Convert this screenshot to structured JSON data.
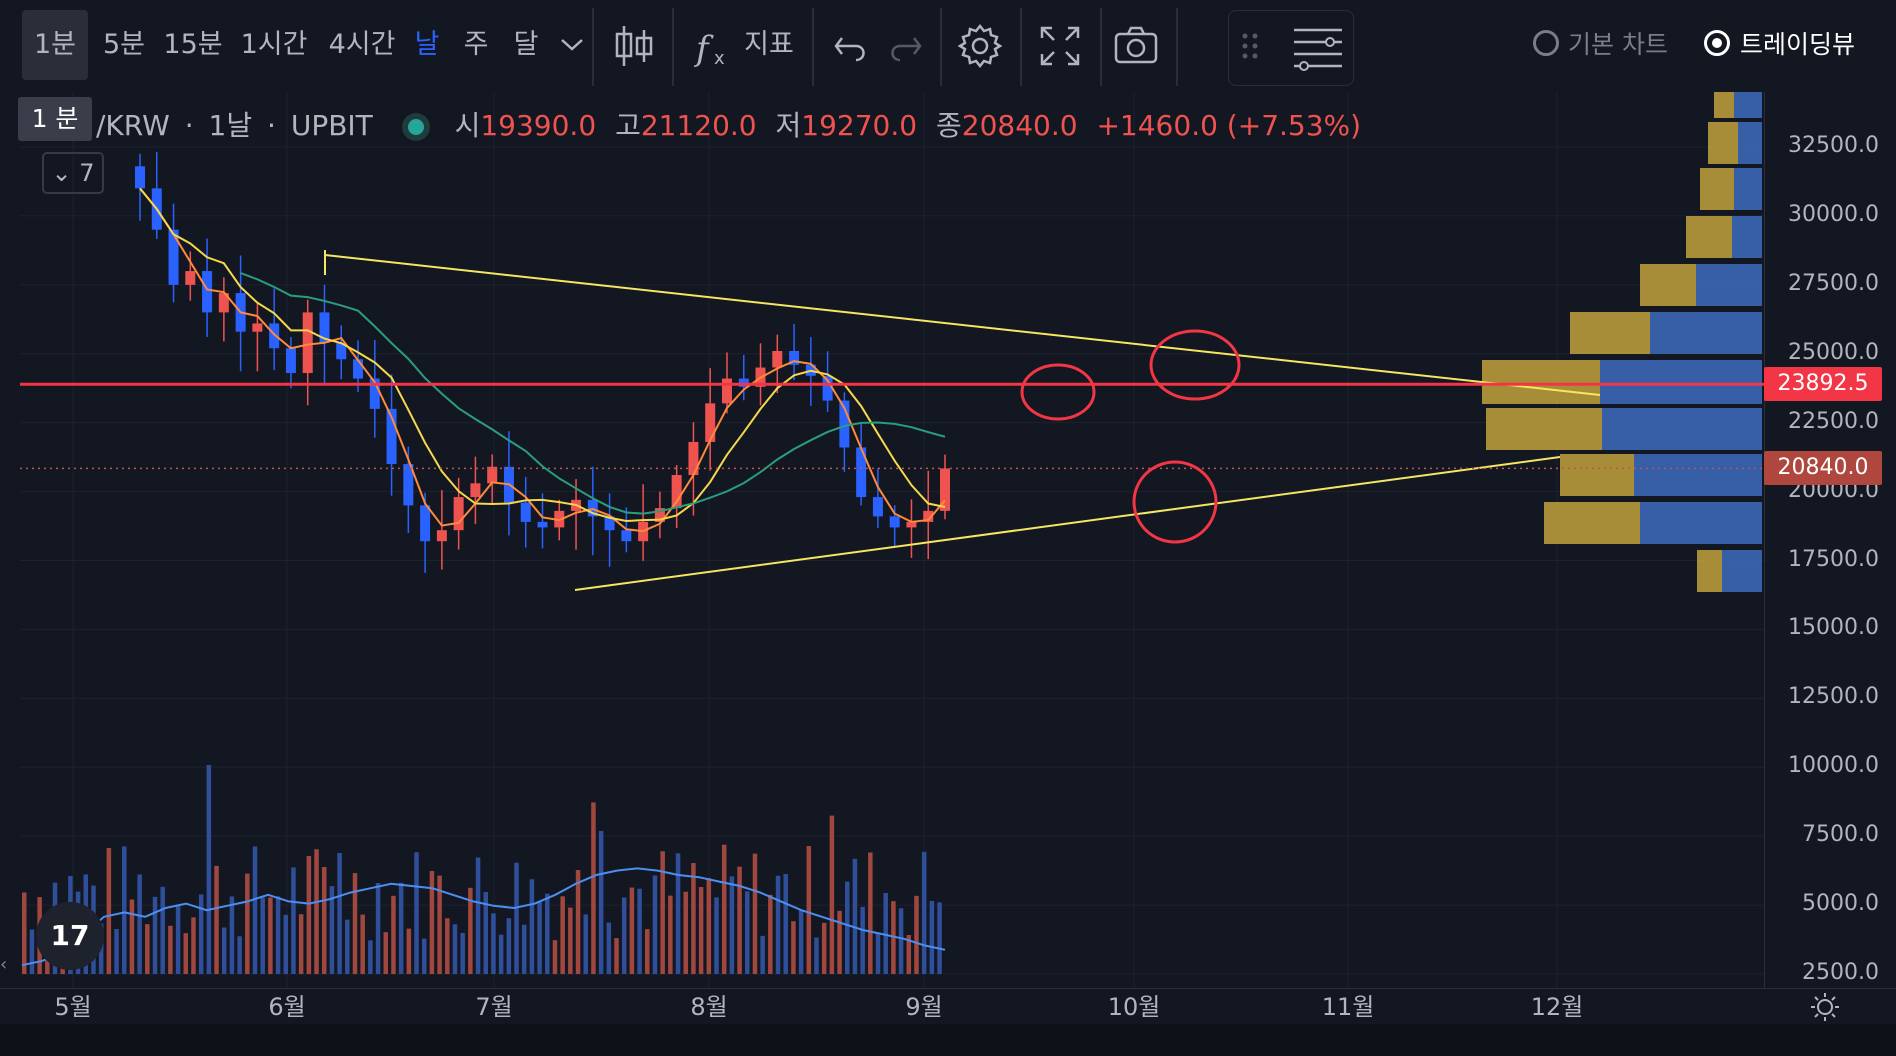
{
  "toolbar": {
    "intervals": [
      {
        "label": "1분",
        "active": false,
        "hovered": true
      },
      {
        "label": "5분",
        "active": false
      },
      {
        "label": "15분",
        "active": false
      },
      {
        "label": "1시간",
        "active": false
      },
      {
        "label": "4시간",
        "active": false
      },
      {
        "label": "날",
        "active": true
      },
      {
        "label": "주",
        "active": false
      },
      {
        "label": "달",
        "active": false
      }
    ],
    "indicators_label": "지표",
    "chart_types": {
      "basic": "기본 차트",
      "tradingview": "트레이딩뷰",
      "selected": "tradingview"
    }
  },
  "tooltip": {
    "text": "1 분"
  },
  "legend": {
    "symbol": "/KRW",
    "interval": "1날",
    "exchange": "UPBIT",
    "open_label": "시",
    "open": "19390.0",
    "high_label": "고",
    "high": "21120.0",
    "low_label": "저",
    "low": "19270.0",
    "close_label": "종",
    "close": "20840.0",
    "change": "+1460.0 (+7.53%)",
    "collapse_count": "7"
  },
  "price_tags": {
    "level": "23892.5",
    "last": "20840.0"
  },
  "colors": {
    "background": "#131722",
    "up": "#ef5350",
    "down": "#2962ff",
    "trendline": "#f5e663",
    "resistance": "#f23645",
    "ma_orange": "#ff8a3d",
    "ma_yellow": "#f7d84b",
    "ma_green": "#2a9d7c",
    "volume_ma": "#4d8ff0"
  },
  "chart_data": {
    "type": "line",
    "y_axis": {
      "labels": [
        "32500.0",
        "30000.0",
        "27500.0",
        "25000.0",
        "22500.0",
        "20000.0",
        "17500.0",
        "15000.0",
        "12500.0",
        "10000.0",
        "7500.0",
        "5000.0",
        "2500.0"
      ],
      "range": [
        2500,
        34500
      ]
    },
    "x_axis": {
      "labels": [
        "5월",
        "6월",
        "7월",
        "8월",
        "9월",
        "10월",
        "11월",
        "12월"
      ]
    },
    "horizontal_level": 23892.5,
    "last_price": 20840,
    "close_series": [
      31000,
      29500,
      27500,
      28000,
      26500,
      27200,
      25800,
      26100,
      25200,
      24300,
      26500,
      25400,
      24800,
      24100,
      23000,
      21000,
      19500,
      18200,
      18600,
      19800,
      20300,
      20900,
      19600,
      18900,
      18700,
      19300,
      19700,
      19100,
      18600,
      18200,
      18900,
      19400,
      20600,
      21800,
      23200,
      24100,
      23800,
      24500,
      25100,
      24600,
      24200,
      23300,
      21600,
      19800,
      19100,
      18700,
      18900,
      19300,
      20840
    ],
    "volume_ma_series": [
      2700,
      2800,
      3000,
      3400,
      3800,
      3900,
      3800,
      4000,
      4100,
      3950,
      4050,
      4150,
      4300,
      4150,
      4100,
      4200,
      4350,
      4450,
      4550,
      4500,
      4450,
      4300,
      4150,
      4050,
      4000,
      4100,
      4300,
      4550,
      4750,
      4850,
      4900,
      4850,
      4750,
      4700,
      4600,
      4500,
      4350,
      4150,
      3950,
      3800,
      3650,
      3500,
      3400,
      3300,
      3150,
      3050
    ]
  }
}
